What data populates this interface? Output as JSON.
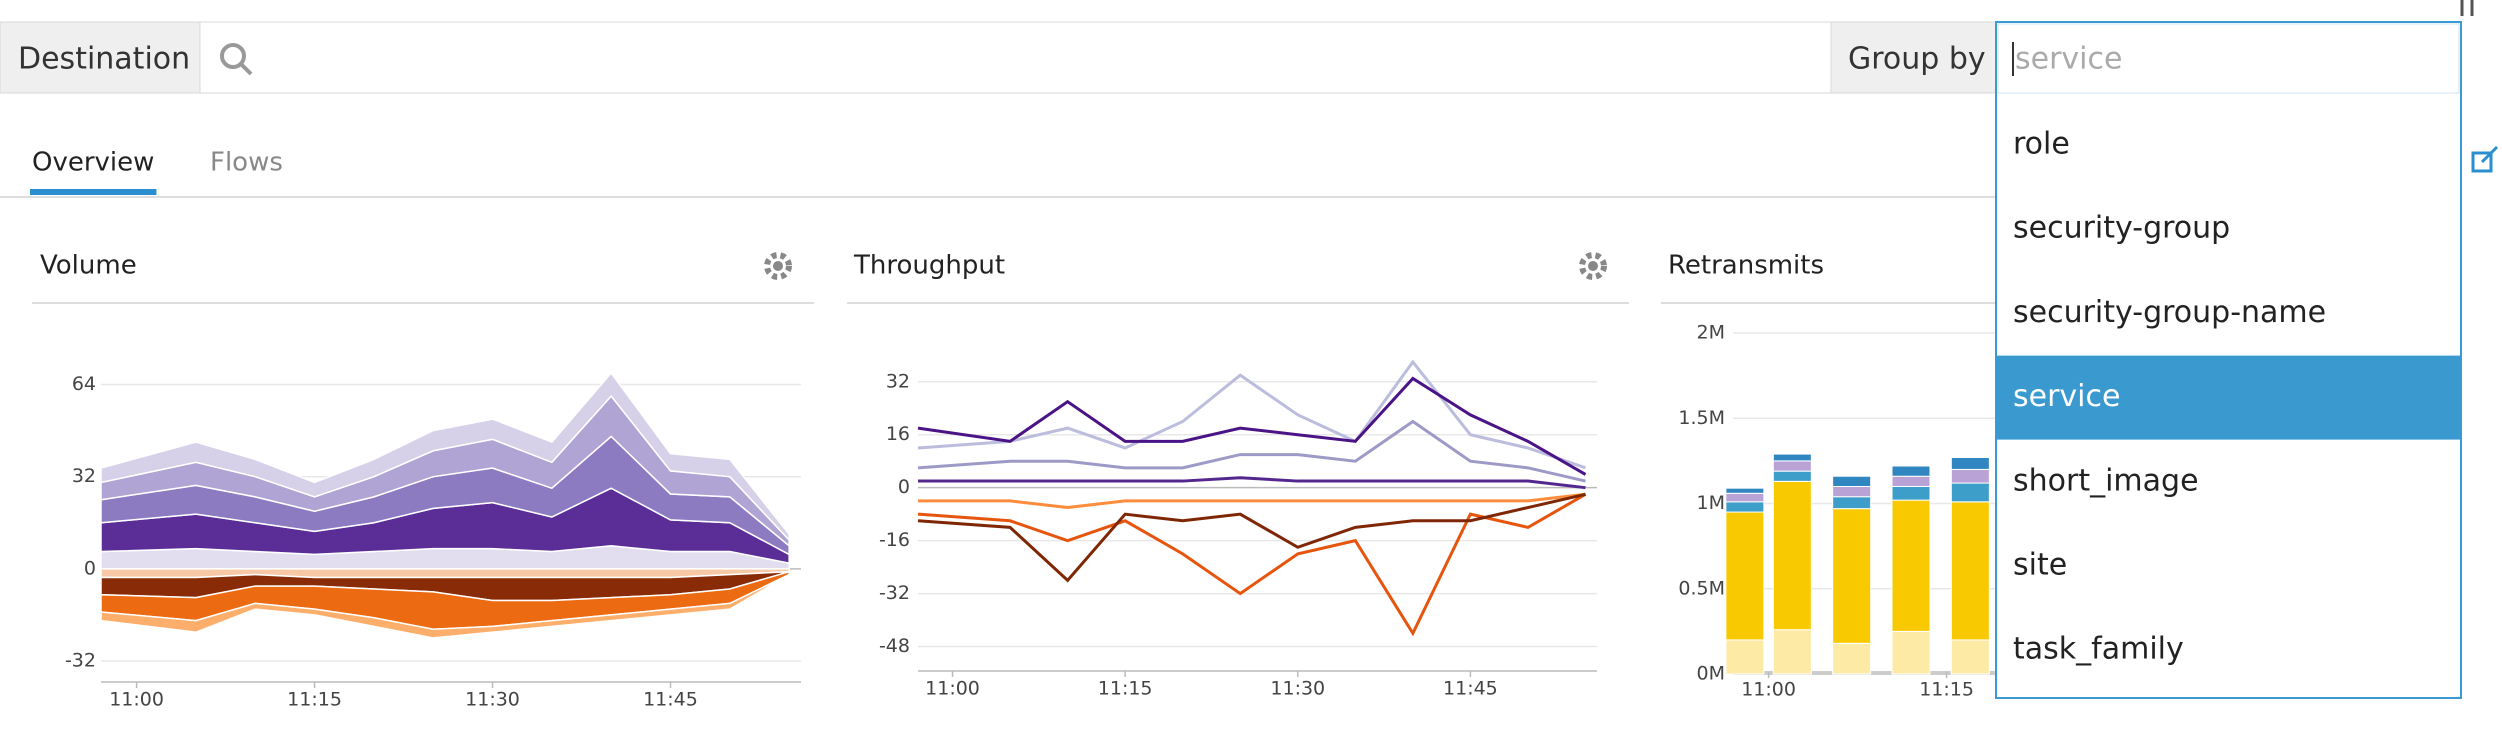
{
  "search_bar": {
    "field_label": "Destination",
    "group_by_label": "Group by"
  },
  "group_by_dropdown": {
    "placeholder": "service",
    "options": [
      "role",
      "security-group",
      "security-group-name",
      "service",
      "short_image",
      "site",
      "task_family"
    ],
    "selected": "service"
  },
  "tabs": {
    "items": [
      "Overview",
      "Flows"
    ],
    "active": "Overview"
  },
  "chart_data": [
    {
      "type": "area",
      "stacked": true,
      "title": "Volume",
      "x": [
        "10:57",
        "11:05",
        "11:10",
        "11:15",
        "11:20",
        "11:25",
        "11:30",
        "11:35",
        "11:40",
        "11:45",
        "11:50",
        "11:55"
      ],
      "xlim": [
        "10:57",
        "11:56"
      ],
      "xticks": [
        "11:00",
        "11:15",
        "11:30",
        "11:45"
      ],
      "ylim": [
        -40,
        76
      ],
      "yticks": [
        64,
        32,
        0,
        -32
      ],
      "grid": true,
      "series": [
        {
          "color": "#e3ddf0",
          "values": [
            6,
            7,
            6,
            5,
            6,
            7,
            7,
            6,
            8,
            6,
            6,
            2
          ]
        },
        {
          "color": "#5b2d97",
          "values": [
            10,
            12,
            10,
            8,
            10,
            14,
            16,
            12,
            20,
            11,
            10,
            3
          ]
        },
        {
          "color": "#8d7bc2",
          "values": [
            8,
            10,
            9,
            7,
            9,
            11,
            12,
            10,
            18,
            9,
            9,
            3
          ]
        },
        {
          "color": "#b0a4d5",
          "values": [
            6,
            8,
            7,
            5,
            7,
            9,
            10,
            9,
            14,
            8,
            7,
            2
          ]
        },
        {
          "color": "#d6d0e8",
          "values": [
            5,
            7,
            6,
            5,
            6,
            7,
            7,
            7,
            8,
            6,
            6,
            2
          ]
        },
        {
          "color": "#f7c8a6",
          "values": [
            -3,
            -3,
            -2,
            -3,
            -3,
            -3,
            -3,
            -3,
            -3,
            -3,
            -2,
            -1
          ]
        },
        {
          "color": "#8a2b07",
          "values": [
            -6,
            -7,
            -4,
            -3,
            -4,
            -5,
            -8,
            -8,
            -7,
            -6,
            -5,
            0
          ]
        },
        {
          "color": "#ec6a12",
          "values": [
            -6,
            -8,
            -6,
            -8,
            -10,
            -13,
            -9,
            -7,
            -6,
            -5,
            -5,
            -1
          ]
        },
        {
          "color": "#fdae6b",
          "values": [
            -3,
            -4,
            -2,
            -2,
            -3,
            -3,
            -2,
            -2,
            -2,
            -2,
            -2,
            0
          ]
        }
      ]
    },
    {
      "type": "line",
      "title": "Throughput",
      "x": [
        "10:57",
        "11:05",
        "11:10",
        "11:15",
        "11:20",
        "11:25",
        "11:30",
        "11:35",
        "11:40",
        "11:45",
        "11:50",
        "11:55"
      ],
      "xlim": [
        "10:57",
        "11:56"
      ],
      "xticks": [
        "11:00",
        "11:15",
        "11:30",
        "11:45"
      ],
      "ylim": [
        -56,
        41
      ],
      "yticks": [
        32,
        16,
        0,
        -16,
        -32,
        -48
      ],
      "grid": true,
      "series": [
        {
          "color": "#bcbddc",
          "values": [
            12,
            14,
            18,
            12,
            20,
            34,
            22,
            14,
            38,
            16,
            12,
            6
          ]
        },
        {
          "color": "#9e9ac8",
          "values": [
            6,
            8,
            8,
            6,
            6,
            10,
            10,
            8,
            20,
            8,
            6,
            2
          ]
        },
        {
          "color": "#4a1486",
          "values": [
            18,
            14,
            26,
            14,
            14,
            18,
            16,
            14,
            33,
            22,
            14,
            4
          ]
        },
        {
          "color": "#54278f",
          "values": [
            2,
            2,
            2,
            2,
            2,
            3,
            2,
            2,
            2,
            2,
            2,
            0
          ]
        },
        {
          "color": "#fd8d3c",
          "values": [
            -4,
            -4,
            -6,
            -4,
            -4,
            -4,
            -4,
            -4,
            -4,
            -4,
            -4,
            -2
          ]
        },
        {
          "color": "#e6550d",
          "values": [
            -8,
            -10,
            -16,
            -10,
            -20,
            -32,
            -20,
            -16,
            -44,
            -8,
            -12,
            -2
          ]
        },
        {
          "color": "#7f2704",
          "values": [
            -10,
            -12,
            -28,
            -8,
            -10,
            -8,
            -18,
            -12,
            -10,
            -10,
            -6,
            -2
          ]
        }
      ]
    },
    {
      "type": "bar",
      "stacked": true,
      "title": "Retransmits",
      "x": [
        "10:58",
        "11:02",
        "11:07",
        "11:12",
        "11:17",
        "11:22",
        "11:27",
        "11:32",
        "11:37",
        "11:42",
        "11:47",
        "11:52"
      ],
      "xlim": [
        "10:57",
        "11:57"
      ],
      "xticks": [
        "11:00",
        "11:15",
        "11:30",
        "11:45"
      ],
      "ylim": [
        0,
        2100000
      ],
      "yticks": [
        {
          "value": 2000000,
          "label": "2M"
        },
        {
          "value": 1500000,
          "label": "1.5M"
        },
        {
          "value": 1000000,
          "label": "1M"
        },
        {
          "value": 500000,
          "label": "0.5M"
        },
        {
          "value": 0,
          "label": "0M"
        }
      ],
      "grid": true,
      "series": [
        {
          "color": "#fdeaa4",
          "values": [
            200000,
            260000,
            180000,
            250000,
            200000,
            220000,
            240000,
            200000,
            230000,
            210000,
            190000,
            150000
          ]
        },
        {
          "color": "#f9c900",
          "values": [
            750000,
            870000,
            790000,
            770000,
            810000,
            800000,
            850000,
            780000,
            820000,
            790000,
            760000,
            500000
          ]
        },
        {
          "color": "#3d9fc9",
          "values": [
            60000,
            60000,
            70000,
            80000,
            110000,
            70000,
            80000,
            70000,
            80000,
            60000,
            60000,
            40000
          ]
        },
        {
          "color": "#b9a2d6",
          "values": [
            50000,
            60000,
            60000,
            60000,
            80000,
            60000,
            60000,
            60000,
            60000,
            60000,
            50000,
            30000
          ]
        },
        {
          "color": "#2f86c0",
          "values": [
            30000,
            40000,
            60000,
            60000,
            70000,
            50000,
            50000,
            50000,
            50000,
            40000,
            40000,
            30000
          ]
        }
      ]
    }
  ]
}
